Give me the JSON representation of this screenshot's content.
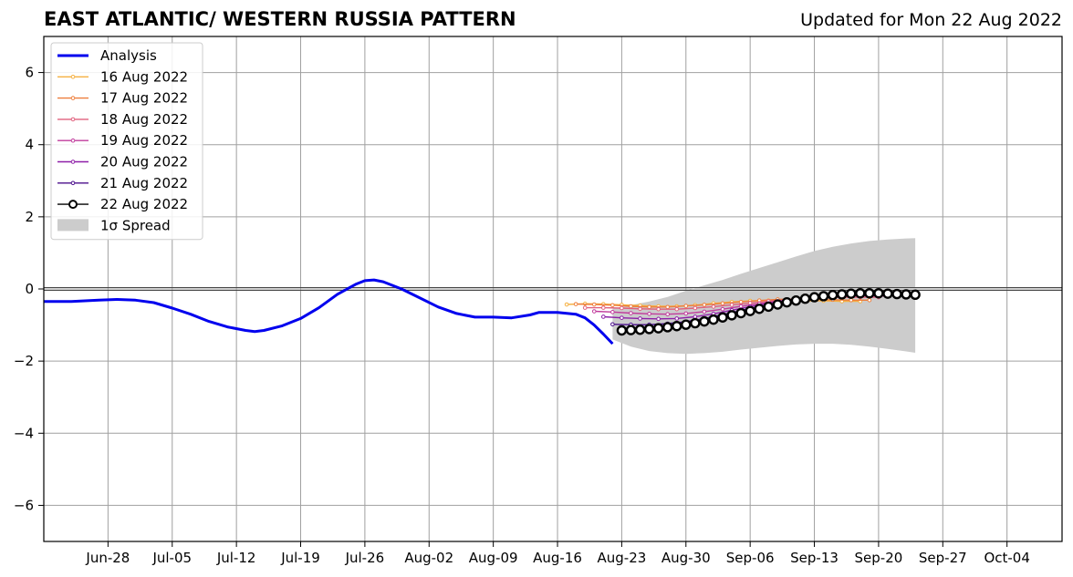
{
  "title": "EAST ATLANTIC/ WESTERN RUSSIA PATTERN",
  "subtitle": "Updated for Mon 22 Aug 2022",
  "chart_data": {
    "type": "line",
    "x_axis": {
      "type": "date",
      "range": [
        "2022-06-21",
        "2022-10-10"
      ],
      "ticks": [
        "2022-06-28",
        "2022-07-05",
        "2022-07-12",
        "2022-07-19",
        "2022-07-26",
        "2022-08-02",
        "2022-08-09",
        "2022-08-16",
        "2022-08-23",
        "2022-08-30",
        "2022-09-06",
        "2022-09-13",
        "2022-09-20",
        "2022-09-27",
        "2022-10-04"
      ],
      "tick_labels": [
        "Jun-28",
        "Jul-05",
        "Jul-12",
        "Jul-19",
        "Jul-26",
        "Aug-02",
        "Aug-09",
        "Aug-16",
        "Aug-23",
        "Aug-30",
        "Sep-06",
        "Sep-13",
        "Sep-20",
        "Sep-27",
        "Oct-04"
      ]
    },
    "y_axis": {
      "range": [
        -7,
        7
      ],
      "ticks": [
        -6,
        -4,
        -2,
        0,
        2,
        4,
        6
      ],
      "tick_labels": [
        "−6",
        "−4",
        "−2",
        "0",
        "2",
        "4",
        "6"
      ]
    },
    "grid": true,
    "zero_line": true,
    "legend_position": "top-left",
    "analysis": {
      "name": "Analysis",
      "color": "#0000ee",
      "points": [
        [
          "2022-06-21",
          -0.35
        ],
        [
          "2022-06-24",
          -0.35
        ],
        [
          "2022-06-27",
          -0.31
        ],
        [
          "2022-06-29",
          -0.29
        ],
        [
          "2022-07-01",
          -0.31
        ],
        [
          "2022-07-03",
          -0.38
        ],
        [
          "2022-07-05",
          -0.53
        ],
        [
          "2022-07-07",
          -0.7
        ],
        [
          "2022-07-09",
          -0.9
        ],
        [
          "2022-07-11",
          -1.05
        ],
        [
          "2022-07-13",
          -1.15
        ],
        [
          "2022-07-14",
          -1.18
        ],
        [
          "2022-07-15",
          -1.15
        ],
        [
          "2022-07-17",
          -1.02
        ],
        [
          "2022-07-19",
          -0.82
        ],
        [
          "2022-07-21",
          -0.52
        ],
        [
          "2022-07-23",
          -0.15
        ],
        [
          "2022-07-25",
          0.13
        ],
        [
          "2022-07-26",
          0.23
        ],
        [
          "2022-07-27",
          0.25
        ],
        [
          "2022-07-28",
          0.2
        ],
        [
          "2022-07-30",
          0.0
        ],
        [
          "2022-08-01",
          -0.25
        ],
        [
          "2022-08-03",
          -0.5
        ],
        [
          "2022-08-05",
          -0.68
        ],
        [
          "2022-08-07",
          -0.78
        ],
        [
          "2022-08-09",
          -0.78
        ],
        [
          "2022-08-11",
          -0.8
        ],
        [
          "2022-08-13",
          -0.72
        ],
        [
          "2022-08-14",
          -0.65
        ],
        [
          "2022-08-16",
          -0.65
        ],
        [
          "2022-08-18",
          -0.7
        ],
        [
          "2022-08-19",
          -0.8
        ],
        [
          "2022-08-20",
          -1.0
        ],
        [
          "2022-08-21",
          -1.25
        ],
        [
          "2022-08-22",
          -1.52
        ]
      ]
    },
    "forecasts": [
      {
        "name": "16 Aug 2022",
        "color": "#f5b041",
        "points": [
          [
            "2022-08-17",
            -0.43
          ],
          [
            "2022-08-19",
            -0.41
          ],
          [
            "2022-08-21",
            -0.42
          ],
          [
            "2022-08-23",
            -0.44
          ],
          [
            "2022-08-25",
            -0.46
          ],
          [
            "2022-08-27",
            -0.48
          ],
          [
            "2022-08-29",
            -0.48
          ],
          [
            "2022-08-31",
            -0.45
          ],
          [
            "2022-09-02",
            -0.4
          ],
          [
            "2022-09-04",
            -0.36
          ],
          [
            "2022-09-06",
            -0.33
          ],
          [
            "2022-09-08",
            -0.32
          ],
          [
            "2022-09-10",
            -0.32
          ],
          [
            "2022-09-12",
            -0.33
          ],
          [
            "2022-09-14",
            -0.33
          ],
          [
            "2022-09-16",
            -0.34
          ],
          [
            "2022-09-18",
            -0.34
          ]
        ]
      },
      {
        "name": "17 Aug 2022",
        "color": "#ee7e3c",
        "points": [
          [
            "2022-08-18",
            -0.42
          ],
          [
            "2022-08-20",
            -0.43
          ],
          [
            "2022-08-22",
            -0.45
          ],
          [
            "2022-08-24",
            -0.48
          ],
          [
            "2022-08-26",
            -0.5
          ],
          [
            "2022-08-28",
            -0.5
          ],
          [
            "2022-08-30",
            -0.47
          ],
          [
            "2022-09-01",
            -0.44
          ],
          [
            "2022-09-03",
            -0.4
          ],
          [
            "2022-09-05",
            -0.36
          ],
          [
            "2022-09-07",
            -0.32
          ],
          [
            "2022-09-09",
            -0.29
          ],
          [
            "2022-09-11",
            -0.28
          ],
          [
            "2022-09-13",
            -0.29
          ],
          [
            "2022-09-15",
            -0.3
          ],
          [
            "2022-09-17",
            -0.31
          ],
          [
            "2022-09-19",
            -0.31
          ]
        ]
      },
      {
        "name": "18 Aug 2022",
        "color": "#e0607e",
        "points": [
          [
            "2022-08-19",
            -0.52
          ],
          [
            "2022-08-21",
            -0.52
          ],
          [
            "2022-08-23",
            -0.53
          ],
          [
            "2022-08-25",
            -0.55
          ],
          [
            "2022-08-27",
            -0.56
          ],
          [
            "2022-08-29",
            -0.56
          ],
          [
            "2022-08-31",
            -0.53
          ],
          [
            "2022-09-02",
            -0.49
          ],
          [
            "2022-09-04",
            -0.44
          ],
          [
            "2022-09-06",
            -0.39
          ],
          [
            "2022-09-08",
            -0.34
          ],
          [
            "2022-09-10",
            -0.3
          ],
          [
            "2022-09-12",
            -0.26
          ],
          [
            "2022-09-14",
            -0.24
          ],
          [
            "2022-09-16",
            -0.23
          ],
          [
            "2022-09-18",
            -0.23
          ],
          [
            "2022-09-20",
            -0.23
          ]
        ]
      },
      {
        "name": "19 Aug 2022",
        "color": "#c13b9c",
        "points": [
          [
            "2022-08-20",
            -0.62
          ],
          [
            "2022-08-22",
            -0.64
          ],
          [
            "2022-08-24",
            -0.67
          ],
          [
            "2022-08-26",
            -0.69
          ],
          [
            "2022-08-28",
            -0.7
          ],
          [
            "2022-08-30",
            -0.68
          ],
          [
            "2022-09-01",
            -0.63
          ],
          [
            "2022-09-03",
            -0.56
          ],
          [
            "2022-09-05",
            -0.48
          ],
          [
            "2022-09-07",
            -0.41
          ],
          [
            "2022-09-09",
            -0.34
          ],
          [
            "2022-09-11",
            -0.28
          ],
          [
            "2022-09-13",
            -0.23
          ],
          [
            "2022-09-15",
            -0.2
          ],
          [
            "2022-09-17",
            -0.19
          ],
          [
            "2022-09-19",
            -0.19
          ],
          [
            "2022-09-21",
            -0.2
          ]
        ]
      },
      {
        "name": "20 Aug 2022",
        "color": "#8e1fa8",
        "points": [
          [
            "2022-08-21",
            -0.77
          ],
          [
            "2022-08-23",
            -0.8
          ],
          [
            "2022-08-25",
            -0.82
          ],
          [
            "2022-08-27",
            -0.83
          ],
          [
            "2022-08-29",
            -0.82
          ],
          [
            "2022-08-31",
            -0.77
          ],
          [
            "2022-09-02",
            -0.69
          ],
          [
            "2022-09-04",
            -0.59
          ],
          [
            "2022-09-06",
            -0.49
          ],
          [
            "2022-09-08",
            -0.4
          ],
          [
            "2022-09-10",
            -0.32
          ],
          [
            "2022-09-12",
            -0.26
          ],
          [
            "2022-09-14",
            -0.21
          ],
          [
            "2022-09-16",
            -0.19
          ],
          [
            "2022-09-18",
            -0.18
          ],
          [
            "2022-09-20",
            -0.18
          ]
        ]
      },
      {
        "name": "21 Aug 2022",
        "color": "#4b0f8c",
        "points": [
          [
            "2022-08-22",
            -0.98
          ],
          [
            "2022-08-24",
            -0.99
          ],
          [
            "2022-08-26",
            -0.99
          ],
          [
            "2022-08-28",
            -0.96
          ],
          [
            "2022-08-30",
            -0.91
          ],
          [
            "2022-09-01",
            -0.82
          ],
          [
            "2022-09-03",
            -0.71
          ],
          [
            "2022-09-05",
            -0.6
          ],
          [
            "2022-09-07",
            -0.49
          ],
          [
            "2022-09-09",
            -0.4
          ],
          [
            "2022-09-11",
            -0.31
          ],
          [
            "2022-09-13",
            -0.24
          ],
          [
            "2022-09-15",
            -0.19
          ],
          [
            "2022-09-17",
            -0.16
          ],
          [
            "2022-09-19",
            -0.15
          ],
          [
            "2022-09-21",
            -0.16
          ]
        ]
      },
      {
        "name": "22 Aug 2022",
        "color": "#000000",
        "points": [
          [
            "2022-08-23",
            -1.15
          ],
          [
            "2022-08-24",
            -1.14
          ],
          [
            "2022-08-25",
            -1.13
          ],
          [
            "2022-08-26",
            -1.11
          ],
          [
            "2022-08-27",
            -1.09
          ],
          [
            "2022-08-28",
            -1.06
          ],
          [
            "2022-08-29",
            -1.03
          ],
          [
            "2022-08-30",
            -0.99
          ],
          [
            "2022-08-31",
            -0.95
          ],
          [
            "2022-09-01",
            -0.9
          ],
          [
            "2022-09-02",
            -0.85
          ],
          [
            "2022-09-03",
            -0.79
          ],
          [
            "2022-09-04",
            -0.73
          ],
          [
            "2022-09-05",
            -0.67
          ],
          [
            "2022-09-06",
            -0.61
          ],
          [
            "2022-09-07",
            -0.55
          ],
          [
            "2022-09-08",
            -0.49
          ],
          [
            "2022-09-09",
            -0.43
          ],
          [
            "2022-09-10",
            -0.37
          ],
          [
            "2022-09-11",
            -0.32
          ],
          [
            "2022-09-12",
            -0.27
          ],
          [
            "2022-09-13",
            -0.23
          ],
          [
            "2022-09-14",
            -0.2
          ],
          [
            "2022-09-15",
            -0.17
          ],
          [
            "2022-09-16",
            -0.15
          ],
          [
            "2022-09-17",
            -0.13
          ],
          [
            "2022-09-18",
            -0.12
          ],
          [
            "2022-09-19",
            -0.12
          ],
          [
            "2022-09-20",
            -0.12
          ],
          [
            "2022-09-21",
            -0.13
          ],
          [
            "2022-09-22",
            -0.14
          ],
          [
            "2022-09-23",
            -0.15
          ],
          [
            "2022-09-24",
            -0.16
          ]
        ]
      }
    ],
    "spread": {
      "name": "1σ Spread",
      "color": "#cccccc",
      "points": [
        [
          "2022-08-22",
          -0.55,
          -1.4
        ],
        [
          "2022-08-24",
          -0.45,
          -1.6
        ],
        [
          "2022-08-26",
          -0.35,
          -1.72
        ],
        [
          "2022-08-28",
          -0.22,
          -1.78
        ],
        [
          "2022-08-30",
          -0.05,
          -1.8
        ],
        [
          "2022-09-01",
          0.1,
          -1.78
        ],
        [
          "2022-09-03",
          0.25,
          -1.74
        ],
        [
          "2022-09-05",
          0.42,
          -1.68
        ],
        [
          "2022-09-07",
          0.58,
          -1.63
        ],
        [
          "2022-09-09",
          0.74,
          -1.58
        ],
        [
          "2022-09-11",
          0.9,
          -1.54
        ],
        [
          "2022-09-13",
          1.05,
          -1.52
        ],
        [
          "2022-09-15",
          1.17,
          -1.52
        ],
        [
          "2022-09-17",
          1.26,
          -1.55
        ],
        [
          "2022-09-19",
          1.33,
          -1.6
        ],
        [
          "2022-09-21",
          1.37,
          -1.66
        ],
        [
          "2022-09-23",
          1.4,
          -1.73
        ],
        [
          "2022-09-24",
          1.41,
          -1.77
        ]
      ]
    }
  }
}
